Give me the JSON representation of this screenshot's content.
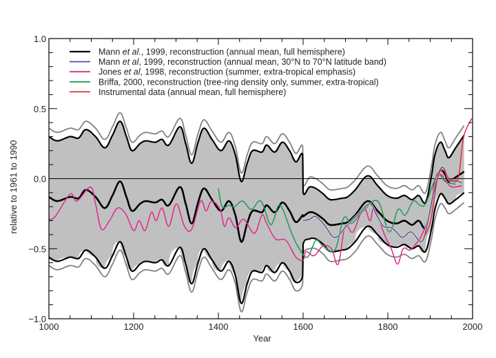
{
  "chart_data": {
    "type": "line",
    "title": "",
    "xlabel": "Year",
    "ylabel": "relative to 1961 to 1990",
    "xlim": [
      1000,
      2000
    ],
    "ylim": [
      -1.0,
      1.0
    ],
    "xticks": [
      1000,
      1200,
      1400,
      1600,
      1800,
      2000
    ],
    "xtick_labels": [
      "1000",
      "1200",
      "1400",
      "1600",
      "1800",
      "2000"
    ],
    "yticks": [
      -1.0,
      -0.5,
      0.0,
      0.5,
      1.0
    ],
    "ytick_labels": [
      "−1.0",
      "−0.5",
      "0.0",
      "0.5",
      "1.0"
    ],
    "zero_line": true,
    "grid": false,
    "legend_position": "top-left",
    "legend": [
      {
        "series": "mann_nh",
        "parts": [
          [
            "Mann ",
            false
          ],
          [
            "et al.",
            true
          ],
          [
            ", 1999, reconstruction (annual mean, full hemisphere)",
            false
          ]
        ],
        "color": "#000000"
      },
      {
        "series": "mann_band",
        "parts": [
          [
            "Mann ",
            false
          ],
          [
            "et al",
            true
          ],
          [
            ", 1999, reconstruction (annual mean, 30°N to 70°N latitude band)",
            false
          ]
        ],
        "color": "#4a4f9e"
      },
      {
        "series": "jones",
        "parts": [
          [
            "Jones ",
            false
          ],
          [
            "et al",
            true
          ],
          [
            ", 1998, reconstruction (summer, extra-tropical emphasis)",
            false
          ]
        ],
        "color": "#e0288a"
      },
      {
        "series": "briffa",
        "parts": [
          [
            "Briffa, 2000, reconstruction (tree-ring density only, summer, extra-tropical)",
            false
          ]
        ],
        "color": "#1f9a5a"
      },
      {
        "series": "instrumental",
        "parts": [
          [
            "Instrumental data (annual mean, full hemisphere)",
            false
          ]
        ],
        "color": "#e8283c"
      }
    ],
    "band_fill_color": "#c0c0c0",
    "band_line_color": "#000000",
    "outer_band_color": "#808080",
    "series": [
      {
        "name": "mann_nh",
        "label": "Mann et al., 1999, reconstruction (annual mean, full hemisphere)",
        "color": "#000000",
        "x": [
          1000,
          1020,
          1050,
          1070,
          1087,
          1110,
          1132,
          1150,
          1168,
          1183,
          1196,
          1215,
          1229,
          1251,
          1267,
          1283,
          1309,
          1323,
          1337,
          1352,
          1366,
          1385,
          1406,
          1425,
          1440,
          1454,
          1468,
          1481,
          1503,
          1514,
          1533,
          1551,
          1568,
          1583,
          1599,
          1600,
          1615,
          1630,
          1648,
          1664,
          1691,
          1705,
          1723,
          1752,
          1776,
          1798,
          1820,
          1839,
          1857,
          1873,
          1889,
          1903,
          1911,
          1924,
          1935,
          1944,
          1960,
          1980
        ],
        "y": [
          -0.13,
          -0.16,
          -0.13,
          -0.14,
          -0.08,
          -0.13,
          -0.21,
          -0.12,
          -0.02,
          -0.13,
          -0.23,
          -0.18,
          -0.16,
          -0.17,
          -0.15,
          -0.19,
          -0.06,
          -0.18,
          -0.32,
          -0.17,
          -0.07,
          -0.15,
          -0.23,
          -0.16,
          -0.26,
          -0.45,
          -0.32,
          -0.23,
          -0.24,
          -0.19,
          -0.24,
          -0.17,
          -0.23,
          -0.31,
          -0.26,
          -0.27,
          -0.24,
          -0.25,
          -0.29,
          -0.33,
          -0.32,
          -0.31,
          -0.26,
          -0.16,
          -0.23,
          -0.3,
          -0.32,
          -0.3,
          -0.33,
          -0.3,
          -0.35,
          -0.18,
          -0.03,
          0.06,
          0.03,
          -0.02,
          0.01,
          0.05
        ],
        "upper": [
          0.3,
          0.27,
          0.3,
          0.29,
          0.35,
          0.3,
          0.22,
          0.31,
          0.41,
          0.3,
          0.2,
          0.25,
          0.27,
          0.26,
          0.28,
          0.24,
          0.37,
          0.25,
          0.11,
          0.26,
          0.36,
          0.28,
          0.2,
          0.27,
          0.17,
          -0.02,
          0.11,
          0.2,
          0.19,
          0.24,
          0.19,
          0.26,
          0.2,
          0.12,
          0.17,
          -0.1,
          -0.06,
          -0.07,
          -0.11,
          -0.15,
          -0.14,
          -0.13,
          -0.08,
          0.02,
          -0.05,
          -0.12,
          -0.14,
          -0.12,
          -0.15,
          -0.12,
          -0.17,
          0.02,
          0.17,
          0.26,
          0.2,
          0.15,
          0.22,
          0.31
        ],
        "lower": [
          -0.56,
          -0.59,
          -0.56,
          -0.57,
          -0.51,
          -0.56,
          -0.64,
          -0.55,
          -0.45,
          -0.56,
          -0.66,
          -0.61,
          -0.59,
          -0.6,
          -0.58,
          -0.62,
          -0.49,
          -0.61,
          -0.75,
          -0.6,
          -0.5,
          -0.58,
          -0.66,
          -0.59,
          -0.69,
          -0.89,
          -0.75,
          -0.66,
          -0.67,
          -0.62,
          -0.67,
          -0.6,
          -0.66,
          -0.74,
          -0.69,
          -0.47,
          -0.43,
          -0.43,
          -0.47,
          -0.52,
          -0.51,
          -0.5,
          -0.45,
          -0.34,
          -0.4,
          -0.47,
          -0.49,
          -0.47,
          -0.5,
          -0.48,
          -0.52,
          -0.36,
          -0.22,
          -0.11,
          -0.14,
          -0.18,
          -0.15,
          -0.1
        ],
        "outer_upper": [
          0.36,
          0.33,
          0.36,
          0.35,
          0.41,
          0.36,
          0.28,
          0.37,
          0.47,
          0.36,
          0.26,
          0.31,
          0.33,
          0.32,
          0.34,
          0.3,
          0.43,
          0.31,
          0.17,
          0.32,
          0.42,
          0.34,
          0.26,
          0.33,
          0.23,
          0.04,
          0.17,
          0.26,
          0.25,
          0.3,
          0.25,
          0.32,
          0.26,
          0.18,
          0.23,
          -0.04,
          0.01,
          0.0,
          -0.04,
          -0.08,
          -0.07,
          -0.06,
          -0.01,
          0.09,
          0.02,
          -0.05,
          -0.07,
          -0.05,
          -0.08,
          -0.05,
          -0.1,
          0.09,
          0.24,
          0.33,
          0.27,
          0.22,
          0.29,
          0.38
        ],
        "outer_lower": [
          -0.62,
          -0.65,
          -0.62,
          -0.63,
          -0.57,
          -0.62,
          -0.7,
          -0.61,
          -0.51,
          -0.62,
          -0.72,
          -0.67,
          -0.65,
          -0.66,
          -0.64,
          -0.68,
          -0.55,
          -0.67,
          -0.81,
          -0.66,
          -0.56,
          -0.64,
          -0.72,
          -0.65,
          -0.75,
          -0.95,
          -0.81,
          -0.72,
          -0.73,
          -0.68,
          -0.73,
          -0.66,
          -0.72,
          -0.8,
          -0.75,
          -0.54,
          -0.5,
          -0.5,
          -0.54,
          -0.59,
          -0.58,
          -0.57,
          -0.52,
          -0.41,
          -0.47,
          -0.54,
          -0.56,
          -0.54,
          -0.57,
          -0.55,
          -0.59,
          -0.43,
          -0.29,
          -0.18,
          -0.21,
          -0.25,
          -0.22,
          -0.17
        ]
      },
      {
        "name": "mann_band",
        "label": "Mann et al, 1999, reconstruction (annual mean, 30°N to 70°N latitude band)",
        "color": "#4a4f9e",
        "x": [
          1600,
          1615,
          1630,
          1650,
          1675,
          1702,
          1734,
          1758,
          1775,
          1790,
          1808,
          1820,
          1835,
          1855,
          1879,
          1892,
          1908,
          1927,
          1945,
          1956,
          1975
        ],
        "y": [
          -0.3,
          -0.29,
          -0.27,
          -0.33,
          -0.42,
          -0.34,
          -0.24,
          -0.18,
          -0.27,
          -0.34,
          -0.35,
          -0.38,
          -0.42,
          -0.38,
          -0.45,
          -0.34,
          -0.1,
          0.08,
          -0.01,
          -0.01,
          -0.03
        ]
      },
      {
        "name": "jones",
        "label": "Jones et al, 1998, reconstruction (summer, extra-tropical emphasis)",
        "color": "#e0288a",
        "x": [
          1000,
          1015,
          1050,
          1066,
          1098,
          1110,
          1124,
          1143,
          1162,
          1181,
          1200,
          1213,
          1227,
          1242,
          1253,
          1267,
          1283,
          1301,
          1320,
          1337,
          1358,
          1371,
          1384,
          1404,
          1414,
          1425,
          1441,
          1460,
          1485,
          1503,
          1514,
          1535,
          1559,
          1583,
          1600,
          1607,
          1626,
          1647,
          1667,
          1683,
          1699,
          1718,
          1742,
          1758,
          1768,
          1792,
          1808,
          1823,
          1836,
          1852,
          1865,
          1879,
          1895,
          1911,
          1924,
          1940,
          1952,
          1975
        ],
        "y": [
          -0.29,
          -0.27,
          -0.11,
          -0.16,
          -0.06,
          -0.18,
          -0.36,
          -0.3,
          -0.21,
          -0.25,
          -0.37,
          -0.3,
          -0.37,
          -0.24,
          -0.3,
          -0.21,
          -0.34,
          -0.18,
          -0.34,
          -0.36,
          -0.16,
          -0.23,
          -0.16,
          -0.22,
          -0.34,
          -0.28,
          -0.35,
          -0.29,
          -0.39,
          -0.26,
          -0.32,
          -0.43,
          -0.44,
          -0.56,
          -0.58,
          -0.52,
          -0.55,
          -0.48,
          -0.5,
          -0.61,
          -0.34,
          -0.38,
          -0.21,
          -0.3,
          -0.21,
          -0.4,
          -0.5,
          -0.61,
          -0.5,
          -0.51,
          -0.47,
          -0.41,
          -0.28,
          -0.03,
          0.03,
          -0.03,
          -0.06,
          -0.05
        ]
      },
      {
        "name": "briffa",
        "label": "Briffa, 2000, reconstruction (tree-ring density only, summer, extra-tropical)",
        "color": "#1f9a5a",
        "x": [
          1400,
          1409,
          1425,
          1438,
          1457,
          1478,
          1500,
          1521,
          1530,
          1546,
          1573,
          1589,
          1610,
          1630,
          1647,
          1675,
          1696,
          1714,
          1739,
          1776,
          1803,
          1824,
          1841,
          1860,
          1876,
          1889,
          1908,
          1921,
          1935,
          1960
        ],
        "y": [
          -0.07,
          -0.2,
          -0.19,
          -0.2,
          -0.16,
          -0.22,
          -0.16,
          -0.32,
          -0.3,
          -0.19,
          -0.39,
          -0.49,
          -0.56,
          -0.44,
          -0.48,
          -0.51,
          -0.28,
          -0.32,
          -0.24,
          -0.16,
          -0.38,
          -0.22,
          -0.26,
          -0.16,
          -0.19,
          -0.18,
          -0.03,
          0.03,
          -0.02,
          -0.04
        ]
      },
      {
        "name": "instrumental",
        "label": "Instrumental data (annual mean, full hemisphere)",
        "color": "#e8283c",
        "x": [
          1885,
          1901,
          1917,
          1930,
          1945,
          1961,
          1969,
          1979,
          1998
        ],
        "y": [
          -0.42,
          -0.3,
          0.0,
          0.06,
          0.0,
          -0.02,
          0.05,
          0.3,
          0.43
        ]
      }
    ]
  }
}
